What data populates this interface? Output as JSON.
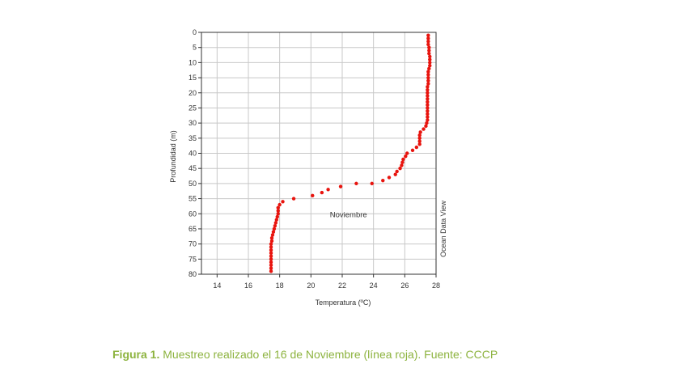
{
  "chart_data": {
    "type": "scatter",
    "xlabel": "Temperatura (ºC)",
    "ylabel": "Profundidad (m)",
    "xlim": [
      13,
      28
    ],
    "ylim": [
      0,
      80
    ],
    "y_inverted": true,
    "x_ticks": [
      "14",
      "16",
      "18",
      "20",
      "22",
      "24",
      "26",
      "28"
    ],
    "y_ticks": [
      "0",
      "5",
      "10",
      "15",
      "20",
      "25",
      "30",
      "35",
      "40",
      "45",
      "50",
      "55",
      "60",
      "65",
      "70",
      "75",
      "80"
    ],
    "grid": true,
    "annotation": "Noviembre",
    "side_label": "Ocean Data View",
    "series": [
      {
        "color": "#e8140e",
        "x": [
          27.5,
          27.5,
          27.5,
          27.5,
          27.55,
          27.55,
          27.55,
          27.6,
          27.6,
          27.6,
          27.6,
          27.55,
          27.5,
          27.5,
          27.5,
          27.5,
          27.5,
          27.45,
          27.45,
          27.45,
          27.45,
          27.45,
          27.45,
          27.45,
          27.45,
          27.45,
          27.45,
          27.45,
          27.45,
          27.4,
          27.35,
          27.2,
          27.0,
          26.95,
          26.95,
          26.95,
          26.95,
          26.75,
          26.5,
          26.15,
          26.05,
          25.9,
          25.85,
          25.8,
          25.7,
          25.5,
          25.4,
          25.0,
          24.6,
          23.9,
          22.9,
          21.9,
          21.1,
          20.7,
          20.1,
          18.9,
          18.2,
          18.0,
          17.9,
          17.9,
          17.9,
          17.85,
          17.8,
          17.75,
          17.7,
          17.65,
          17.6,
          17.55,
          17.5,
          17.5,
          17.45,
          17.45,
          17.45,
          17.45,
          17.45,
          17.45,
          17.45,
          17.45,
          17.45,
          17.45
        ],
        "y": [
          1,
          2,
          3,
          4,
          5,
          6,
          7,
          8,
          9,
          10,
          11,
          12,
          13,
          14,
          15,
          16,
          17,
          18,
          19,
          20,
          21,
          22,
          23,
          24,
          25,
          26,
          27,
          28,
          29,
          30,
          31,
          32,
          33,
          34,
          35,
          36,
          37,
          38,
          39,
          40,
          41,
          42,
          43,
          44,
          45,
          46,
          47,
          48,
          49,
          50,
          50,
          51,
          52,
          53,
          54,
          55,
          56,
          57,
          58,
          59,
          60,
          61,
          62,
          63,
          64,
          65,
          66,
          67,
          68,
          69,
          70,
          71,
          72,
          73,
          74,
          75,
          76,
          77,
          78,
          79
        ]
      }
    ]
  },
  "caption": {
    "lead": "Figura 1.",
    "text": " Muestreo realizado el 16 de Noviembre (línea roja). Fuente: CCCP"
  }
}
